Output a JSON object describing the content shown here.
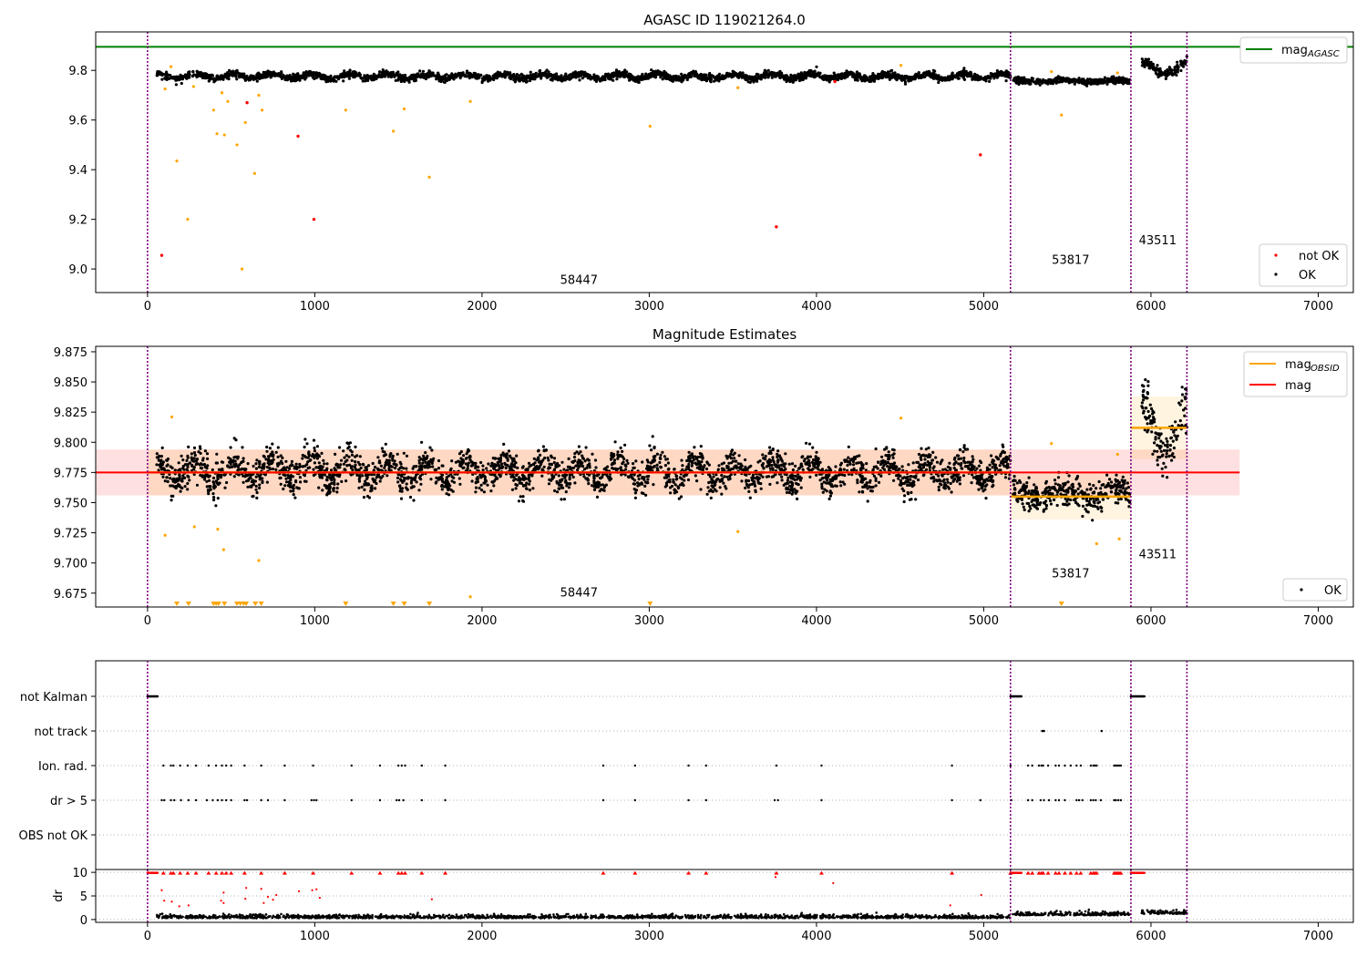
{
  "chart_data": [
    {
      "type": "scatter",
      "title": "AGASC ID 119021264.0",
      "xlabel": "",
      "ylabel": "",
      "xlim": [
        -310,
        7210
      ],
      "ylim": [
        8.905,
        9.955
      ],
      "xticks": [
        0,
        1000,
        2000,
        3000,
        4000,
        5000,
        6000,
        7000
      ],
      "yticks": [
        9.0,
        9.2,
        9.4,
        9.6,
        9.8
      ],
      "mag_agasc": 9.895,
      "obsid_boundaries": [
        0,
        5160,
        5880,
        6215
      ],
      "obsid_labels": [
        {
          "text": "58447",
          "x": 2580,
          "y": 8.94
        },
        {
          "text": "53817",
          "x": 5520,
          "y": 9.02
        },
        {
          "text": "43511",
          "x": 6040,
          "y": 9.1
        }
      ],
      "legend_lines": [
        {
          "label_main": "mag",
          "label_sub": "AGASC",
          "color": "#008000"
        }
      ],
      "legend_points": [
        {
          "label": "not OK",
          "color": "#ff0000"
        },
        {
          "label": "OK",
          "color": "#000000"
        }
      ],
      "ok_segments": [
        {
          "x0": 55,
          "x1": 5160,
          "mean": 9.776,
          "amp": 0.009,
          "period": 230,
          "noise": 0.007
        },
        {
          "x0": 5175,
          "x1": 5875,
          "mean": 9.757,
          "amp": 0.004,
          "period": 300,
          "noise": 0.006
        },
        {
          "x0": 5945,
          "x1": 6215,
          "mean": 9.812,
          "amp": 0.022,
          "period": 280,
          "noise": 0.01
        }
      ],
      "orange_points": [
        [
          105,
          9.725
        ],
        [
          140,
          9.815
        ],
        [
          175,
          9.435
        ],
        [
          240,
          9.2
        ],
        [
          275,
          9.735
        ],
        [
          395,
          9.64
        ],
        [
          415,
          9.545
        ],
        [
          445,
          9.71
        ],
        [
          460,
          9.54
        ],
        [
          480,
          9.675
        ],
        [
          535,
          9.5
        ],
        [
          565,
          9.0
        ],
        [
          585,
          9.59
        ],
        [
          640,
          9.385
        ],
        [
          665,
          9.7
        ],
        [
          685,
          9.64
        ],
        [
          1185,
          9.64
        ],
        [
          1470,
          9.555
        ],
        [
          1535,
          9.645
        ],
        [
          1685,
          9.37
        ],
        [
          1930,
          9.675
        ],
        [
          3005,
          9.575
        ],
        [
          3530,
          9.73
        ],
        [
          4505,
          9.82
        ],
        [
          5405,
          9.795
        ],
        [
          5465,
          9.62
        ],
        [
          5800,
          9.79
        ]
      ],
      "red_points": [
        [
          85,
          9.055
        ],
        [
          595,
          9.67
        ],
        [
          900,
          9.535
        ],
        [
          995,
          9.2
        ],
        [
          3760,
          9.17
        ],
        [
          4110,
          9.755
        ],
        [
          4980,
          9.46
        ]
      ]
    },
    {
      "type": "scatter",
      "title": "Magnitude Estimates",
      "xlabel": "",
      "ylabel": "",
      "xlim": [
        -310,
        7210
      ],
      "ylim": [
        9.6635,
        9.8795
      ],
      "xticks": [
        0,
        1000,
        2000,
        3000,
        4000,
        5000,
        6000,
        7000
      ],
      "yticks": [
        9.675,
        9.7,
        9.725,
        9.75,
        9.775,
        9.8,
        9.825,
        9.85,
        9.875
      ],
      "mag": 9.775,
      "mag_band": [
        9.756,
        9.794
      ],
      "mag_band_x": [
        -310,
        6530
      ],
      "obsid_means": [
        {
          "x0": 0,
          "x1": 5160,
          "mean": 9.775,
          "band": [
            9.756,
            9.794
          ]
        },
        {
          "x0": 5160,
          "x1": 5880,
          "mean": 9.755,
          "band": [
            9.736,
            9.774
          ]
        },
        {
          "x0": 5880,
          "x1": 6215,
          "mean": 9.812,
          "band": [
            9.786,
            9.838
          ]
        }
      ],
      "obsid_boundaries": [
        0,
        5160,
        5880,
        6215
      ],
      "obsid_labels": [
        {
          "text": "58447",
          "x": 2580,
          "y": 9.672
        },
        {
          "text": "53817",
          "x": 5520,
          "y": 9.688
        },
        {
          "text": "43511",
          "x": 6040,
          "y": 9.704
        }
      ],
      "legend_lines": [
        {
          "label_main": "mag",
          "label_sub": "OBSID",
          "color": "#ffa500"
        },
        {
          "label_main": "mag",
          "label_sub": "",
          "color": "#ff0000"
        }
      ],
      "legend_points": [
        {
          "label": "OK",
          "color": "#000000"
        }
      ],
      "orange_points": [
        [
          105,
          9.723
        ],
        [
          145,
          9.821
        ],
        [
          280,
          9.73
        ],
        [
          420,
          9.728
        ],
        [
          455,
          9.711
        ],
        [
          665,
          9.702
        ],
        [
          1930,
          9.672
        ],
        [
          3530,
          9.726
        ],
        [
          4505,
          9.82
        ],
        [
          5405,
          9.799
        ],
        [
          5675,
          9.716
        ],
        [
          5800,
          9.79
        ],
        [
          5810,
          9.72
        ]
      ],
      "orange_triangles": [
        175,
        245,
        395,
        410,
        425,
        460,
        535,
        555,
        575,
        590,
        645,
        680,
        1185,
        1470,
        1535,
        1685,
        3005,
        5465
      ]
    },
    {
      "type": "scatter",
      "xlim": [
        -310,
        7210
      ],
      "xticks": [
        0,
        1000,
        2000,
        3000,
        4000,
        5000,
        6000,
        7000
      ],
      "flag_rows": [
        "not Kalman",
        "not track",
        "Ion. rad.",
        "dr > 5",
        "OBS not OK"
      ],
      "obsid_boundaries": [
        0,
        5160,
        5880,
        6215
      ],
      "flags": {
        "not Kalman": [
          [
            0,
            60
          ],
          [
            5160,
            5225
          ],
          [
            5880,
            5960
          ]
        ],
        "not track": [
          5350,
          5360,
          5705
        ],
        "Ion. rad.": [
          95,
          140,
          155,
          195,
          240,
          290,
          365,
          410,
          445,
          470,
          500,
          580,
          680,
          820,
          990,
          1220,
          1390,
          1500,
          1520,
          1540,
          1640,
          1780,
          2725,
          2915,
          3235,
          3340,
          3760,
          4030,
          4810,
          5160,
          5265,
          5290,
          5330,
          5345,
          5355,
          5385,
          5430,
          5450,
          5485,
          5520,
          5555,
          5580,
          5640,
          5655,
          5665,
          5675,
          5780,
          5790,
          5800,
          5810,
          5820
        ],
        "dr > 5": [
          85,
          100,
          140,
          160,
          200,
          245,
          290,
          355,
          390,
          420,
          445,
          470,
          500,
          580,
          595,
          680,
          720,
          820,
          980,
          995,
          1010,
          1220,
          1390,
          1490,
          1505,
          1530,
          1640,
          1780,
          2725,
          2915,
          3235,
          3340,
          3750,
          3770,
          4030,
          4810,
          4980,
          5165,
          5265,
          5290,
          5340,
          5360,
          5390,
          5430,
          5450,
          5485,
          5555,
          5570,
          5590,
          5640,
          5655,
          5670,
          5700,
          5780,
          5790,
          5805,
          5820
        ]
      }
    },
    {
      "type": "scatter",
      "ylabel": "dr",
      "xlim": [
        -310,
        7210
      ],
      "ylim": [
        -0.6,
        10.6
      ],
      "xticks": [
        0,
        1000,
        2000,
        3000,
        4000,
        5000,
        6000,
        7000
      ],
      "xtick_labels": [
        "0",
        "1000",
        "2000",
        "3000",
        "4000",
        "5000",
        "6000",
        "7000"
      ],
      "yticks": [
        0,
        5,
        10
      ],
      "obsid_boundaries": [
        0,
        5160,
        5880,
        6215
      ],
      "red_mid_points": [
        [
          85,
          6.2
        ],
        [
          100,
          4.0
        ],
        [
          145,
          3.8
        ],
        [
          190,
          2.8
        ],
        [
          245,
          3.0
        ],
        [
          440,
          4.0
        ],
        [
          455,
          3.5
        ],
        [
          455,
          5.7
        ],
        [
          585,
          4.4
        ],
        [
          590,
          6.7
        ],
        [
          680,
          6.5
        ],
        [
          695,
          3.5
        ],
        [
          720,
          4.8
        ],
        [
          750,
          4.2
        ],
        [
          770,
          5.2
        ],
        [
          905,
          6.0
        ],
        [
          985,
          6.2
        ],
        [
          1010,
          6.4
        ],
        [
          1030,
          4.6
        ],
        [
          1700,
          4.3
        ],
        [
          3755,
          9.0
        ],
        [
          4100,
          7.7
        ],
        [
          4800,
          3.0
        ],
        [
          4985,
          5.2
        ]
      ]
    }
  ]
}
